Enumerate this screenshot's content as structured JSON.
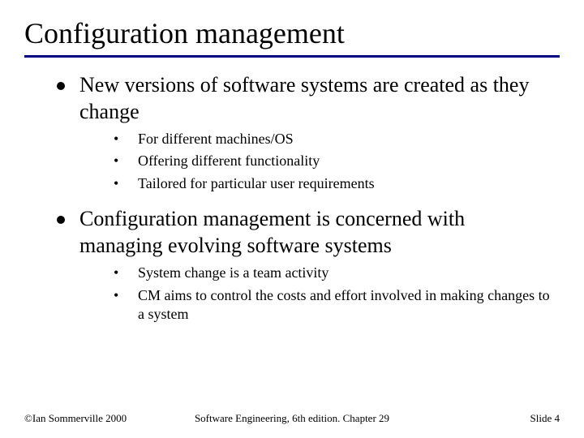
{
  "colors": {
    "title_underline": "#000080",
    "l1_bullet": "#000000",
    "text": "#000000",
    "background": "#ffffff"
  },
  "title": "Configuration management",
  "bullets": [
    {
      "text": "New versions of software systems are created as they change",
      "sub": [
        "For different machines/OS",
        "Offering different functionality",
        "Tailored for particular user requirements"
      ]
    },
    {
      "text": "Configuration management is concerned with managing evolving software systems",
      "sub": [
        "System change is a team activity",
        "CM aims to control the costs and effort involved in making changes to a system"
      ]
    }
  ],
  "footer": {
    "left": "©Ian Sommerville 2000",
    "center": "Software Engineering, 6th edition. Chapter 29",
    "right": "Slide 4"
  }
}
